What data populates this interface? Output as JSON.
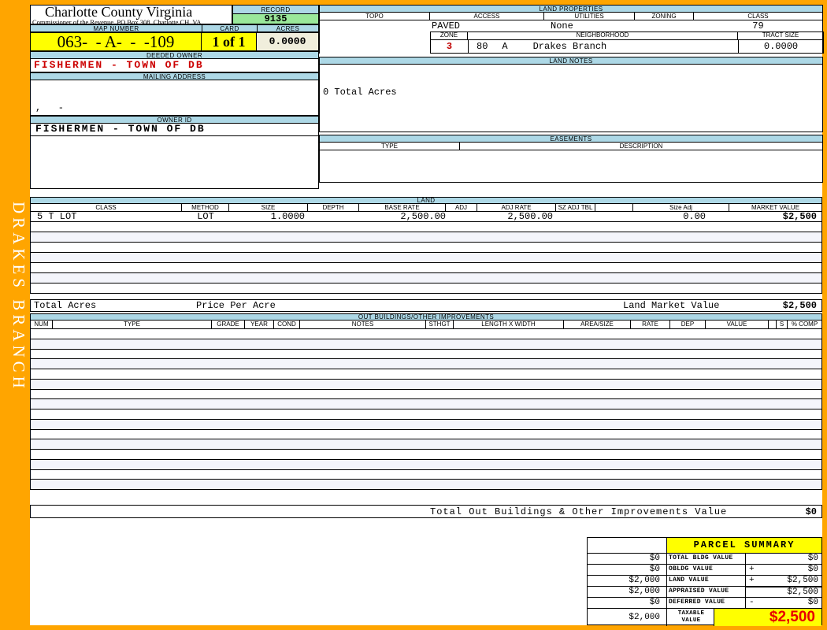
{
  "header": {
    "county": "Charlotte County Virginia",
    "commissioner_line": "Commissioner of the Revenue, PO Box 308, Charlotte CH, VA",
    "record_label": "RECORD",
    "record_number": "9135",
    "map_number_label": "MAP NUMBER",
    "map_number": "063-  - A-  -  -109",
    "card_label": "CARD",
    "card": "1 of 1",
    "acres_label": "ACRES",
    "acres": "0.0000"
  },
  "owner": {
    "deeded_owner_label": "DEEDED OWNER",
    "deeded_owner": "FISHERMEN - TOWN OF DB",
    "mailing_address_label": "MAILING ADDRESS",
    "mailing_address_line": ",   -",
    "owner_id_label": "OWNER ID",
    "owner_id": "FISHERMEN - TOWN OF DB"
  },
  "sidebar": {
    "district": "DRAKES BRANCH"
  },
  "land_properties": {
    "title": "LAND PROPERTIES",
    "columns": [
      "TOPO",
      "ACCESS",
      "UTILITIES",
      "ZONING",
      "CLASS"
    ],
    "topo": "",
    "access": "PAVED",
    "utilities": "None",
    "zoning": "",
    "class": "79",
    "zone_label": "ZONE",
    "zone": "3",
    "neighborhood_label": "NEIGHBORHOOD",
    "neighborhood_code": "80",
    "neighborhood_sub": "A",
    "neighborhood": "Drakes Branch",
    "tract_size_label": "TRACT SIZE",
    "tract_size": "0.0000"
  },
  "land_notes": {
    "title": "LAND NOTES",
    "note": "0 Total Acres"
  },
  "easements": {
    "title": "EASEMENTS",
    "type_label": "TYPE",
    "description_label": "DESCRIPTION"
  },
  "land": {
    "title": "LAND",
    "columns": [
      "CLASS",
      "METHOD",
      "SIZE",
      "DEPTH",
      "BASE RATE",
      "ADJ",
      "ADJ RATE",
      "SZ ADJ TBL",
      "",
      "Size Adj",
      "MARKET VALUE"
    ],
    "rows": [
      {
        "class": "5 T LOT",
        "method": "LOT",
        "size": "1.0000",
        "depth": "",
        "base_rate": "2,500.00",
        "adj": "",
        "adj_rate": "2,500.00",
        "sz_adj_tbl": "",
        "size_adj": "0.00",
        "market_value": "$2,500"
      }
    ],
    "empty_rows": 7,
    "total_acres_label": "Total Acres",
    "price_per_acre_label": "Price Per Acre",
    "land_market_value_label": "Land Market Value",
    "land_market_value": "$2,500"
  },
  "out_buildings": {
    "title": "OUT BUILDINGS/OTHER IMPROVEMENTS",
    "columns": [
      "NUM",
      "TYPE",
      "GRADE",
      "YEAR",
      "COND",
      "NOTES",
      "STHGT",
      "LENGTH X WIDTH",
      "AREA/SIZE",
      "RATE",
      "DEP",
      "VALUE",
      "S",
      "% COMP"
    ],
    "empty_rows": 16,
    "total_label": "Total Out Buildings & Other Improvements Value",
    "total_value": "$0"
  },
  "parcel_summary": {
    "title": "PARCEL SUMMARY",
    "rows": [
      {
        "left": "$0",
        "label": "TOTAL BLDG VALUE",
        "op": "",
        "value": "$0"
      },
      {
        "left": "$0",
        "label": "OBLDG VALUE",
        "op": "+",
        "value": "$0"
      },
      {
        "left": "$2,000",
        "label": "LAND VALUE",
        "op": "+",
        "value": "$2,500"
      },
      {
        "left": "$2,000",
        "label": "APPRAISED VALUE",
        "op": "",
        "value": "$2,500"
      },
      {
        "left": "$0",
        "label": "DEFERRED VALUE",
        "op": "-",
        "value": "$0"
      }
    ],
    "taxable": {
      "left": "$2,000",
      "label": "TAXABLE VALUE",
      "value": "$2,500"
    }
  },
  "colors": {
    "frame_orange": "#FFA500",
    "header_blue": "#ADD8E6",
    "record_green": "#9AE89A",
    "highlight_yellow": "#FFFF00",
    "acres_cream": "#F0EEDC",
    "deeded_owner_red": "#CC0000",
    "zone_red": "#C00000",
    "taxable_red": "#E80000",
    "alt_row": "#F4F5FB"
  }
}
